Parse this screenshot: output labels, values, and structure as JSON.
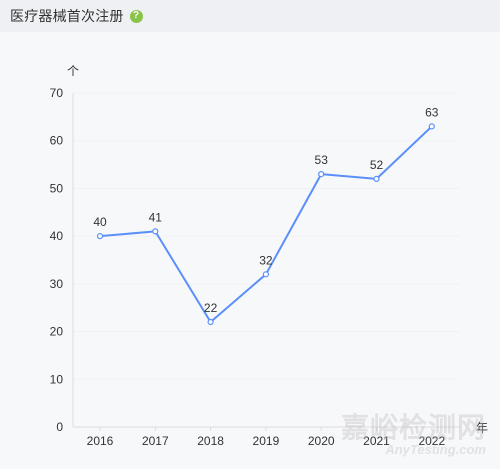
{
  "header": {
    "title": "医疗器械首次注册",
    "help_icon": "question-icon",
    "help_symbol": "?"
  },
  "colors": {
    "line": "#5b8ff9",
    "axis": "#dddddd",
    "grid": "#f1f2f5",
    "text": "#333333",
    "help": "#8bc34a"
  },
  "chart_data": {
    "type": "line",
    "title": "医疗器械首次注册",
    "xlabel": "年",
    "ylabel": "个",
    "categories": [
      "2016",
      "2017",
      "2018",
      "2019",
      "2020",
      "2021",
      "2022"
    ],
    "values": [
      40,
      41,
      22,
      32,
      53,
      52,
      63
    ],
    "ylim": [
      0,
      70
    ],
    "yticks": [
      0,
      10,
      20,
      30,
      40,
      50,
      60,
      70
    ],
    "grid": true,
    "data_labels": true,
    "legend": "none"
  },
  "watermark": {
    "main": "嘉峪检测网",
    "sub": "AnyTesting.com"
  }
}
